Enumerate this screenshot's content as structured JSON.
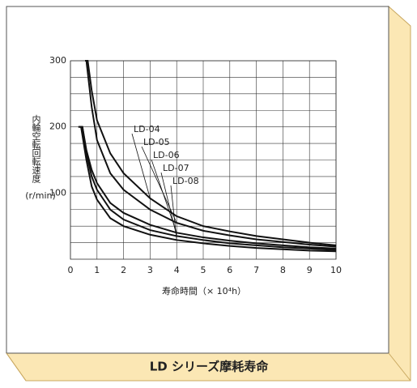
{
  "chart_data": {
    "type": "line",
    "title": "LD シリーズ摩耗寿命",
    "y_label": [
      "内",
      "輪",
      "空",
      "転",
      "回",
      "転",
      "速",
      "度"
    ],
    "y_unit": "(r/min)",
    "x_label": "寿命時間（× 10⁴h）",
    "xlim": [
      0,
      10
    ],
    "xticks": [
      0,
      1,
      2,
      3,
      4,
      5,
      6,
      7,
      8,
      9,
      10
    ],
    "ylim": [
      0,
      300
    ],
    "yticks": [
      100,
      200,
      300
    ],
    "grid": true,
    "series": [
      {
        "name": "LD-04",
        "color": "#111111",
        "x": [
          0.6,
          0.65,
          0.8,
          1,
          1.5,
          2,
          3,
          4,
          5,
          6,
          7,
          8,
          9,
          10
        ],
        "values": [
          300,
          300,
          255,
          210,
          160,
          130,
          92,
          65,
          50,
          42,
          35,
          30,
          25,
          21
        ]
      },
      {
        "name": "LD-05",
        "color": "#111111",
        "x": [
          0.55,
          0.6,
          0.8,
          1,
          1.5,
          2,
          3,
          4,
          5,
          6,
          7,
          8,
          9,
          10
        ],
        "values": [
          300,
          300,
          230,
          180,
          130,
          105,
          75,
          55,
          43,
          36,
          30,
          26,
          22,
          19
        ]
      },
      {
        "name": "LD-06",
        "color": "#111111",
        "x": [
          0.35,
          0.45,
          0.6,
          0.8,
          1,
          1.5,
          2,
          3,
          4,
          5,
          6,
          7,
          8,
          9,
          10
        ],
        "values": [
          200,
          200,
          165,
          135,
          115,
          85,
          70,
          52,
          40,
          33,
          28,
          24,
          21,
          18,
          16
        ]
      },
      {
        "name": "LD-07",
        "color": "#111111",
        "x": [
          0.3,
          0.45,
          0.6,
          0.8,
          1,
          1.5,
          2,
          3,
          4,
          5,
          6,
          7,
          8,
          9,
          10
        ],
        "values": [
          200,
          200,
          160,
          125,
          105,
          75,
          60,
          44,
          35,
          29,
          24,
          21,
          18,
          16,
          14
        ]
      },
      {
        "name": "LD-08",
        "color": "#111111",
        "x": [
          0.3,
          0.4,
          0.6,
          0.8,
          1,
          1.5,
          2,
          3,
          4,
          5,
          6,
          7,
          8,
          9,
          10
        ],
        "values": [
          200,
          200,
          150,
          110,
          90,
          62,
          50,
          37,
          29,
          24,
          20,
          17,
          15,
          13,
          12
        ]
      }
    ]
  }
}
